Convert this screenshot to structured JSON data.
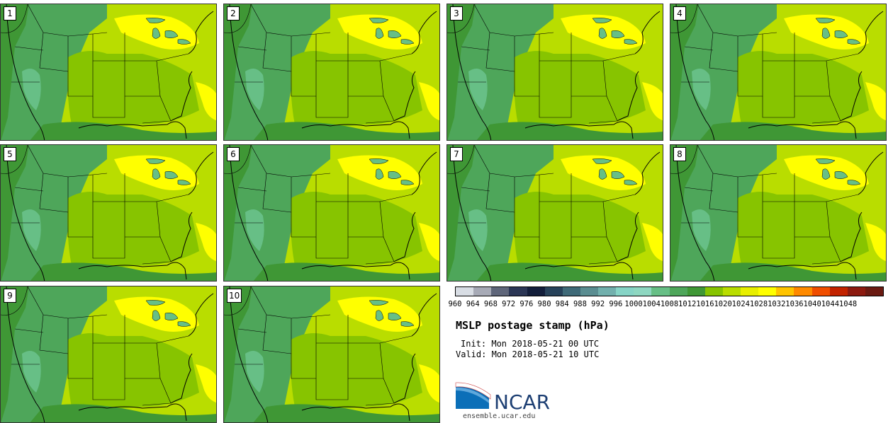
{
  "panels": [
    {
      "label": "1"
    },
    {
      "label": "2"
    },
    {
      "label": "3"
    },
    {
      "label": "4"
    },
    {
      "label": "5"
    },
    {
      "label": "6"
    },
    {
      "label": "7"
    },
    {
      "label": "8"
    },
    {
      "label": "9"
    },
    {
      "label": "10"
    }
  ],
  "colorbar": {
    "ticks": [
      "960",
      "964",
      "968",
      "972",
      "976",
      "980",
      "984",
      "988",
      "992",
      "996",
      "1000",
      "1004",
      "1008",
      "1012",
      "1016",
      "1020",
      "1024",
      "1028",
      "1032",
      "1036",
      "1040",
      "1044",
      "1048"
    ],
    "colors": [
      "#d8dde4",
      "#a7aab6",
      "#5f667a",
      "#2b3655",
      "#131e3b",
      "#27425a",
      "#3f6a78",
      "#5a8d91",
      "#72b0ad",
      "#86d4c6",
      "#8ed7c1",
      "#67bf86",
      "#4ea65a",
      "#3f9735",
      "#87c400",
      "#b9dd00",
      "#e8ef00",
      "#ffff00",
      "#ffc400",
      "#ff8a00",
      "#f04e00",
      "#c22300",
      "#8c1a10",
      "#6a1a12"
    ]
  },
  "colors": {
    "land_low": "#3f9735",
    "land_mid": "#4ea65a",
    "plateau": "#67bf86",
    "plains": "#87c400",
    "east": "#b9dd00",
    "high": "#ffff00",
    "lines": "#000000"
  },
  "title": "MSLP postage stamp (hPa)",
  "init": "Init: Mon 2018-05-21 00 UTC",
  "valid": "Valid: Mon 2018-05-21 10 UTC",
  "logo": {
    "text": "NCAR",
    "url": "ensemble.ucar.edu",
    "icon": "ncar-swoosh-icon"
  }
}
